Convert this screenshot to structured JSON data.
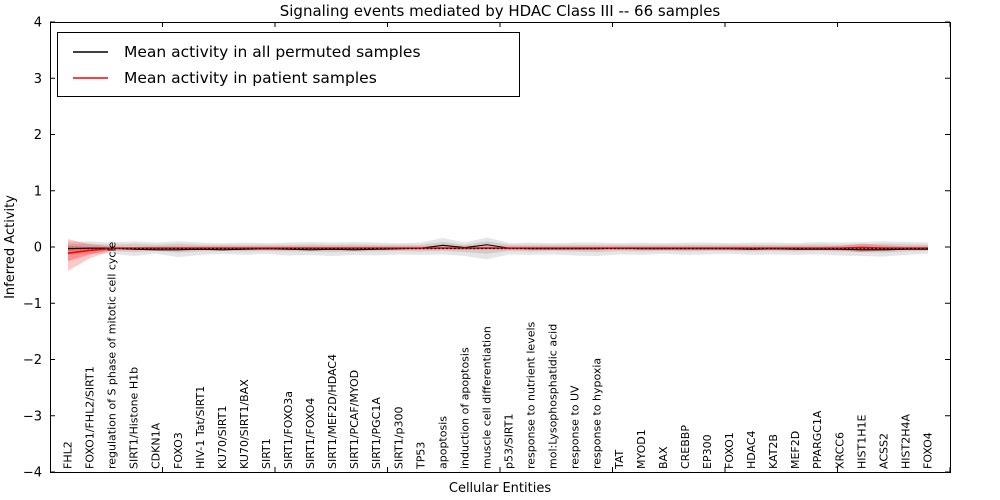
{
  "chart_data": {
    "type": "line",
    "title": "Signaling events mediated by HDAC Class III -- 66 samples",
    "xlabel": "Cellular Entities",
    "ylabel": "Inferred Activity",
    "ylim": [
      -4,
      4
    ],
    "yticks": [
      4,
      3,
      2,
      1,
      0,
      -1,
      -2,
      -3,
      -4
    ],
    "grid": false,
    "legend_position": "upper left",
    "background_color": "#ffffff",
    "axis_color": "#000000",
    "categories": [
      "FHL2",
      "FOXO1/FHL2/SIRT1",
      "regulation of S phase of mitotic cell cycle",
      "SIRT1/Histone H1b",
      "CDKN1A",
      "FOXO3",
      "HIV-1 Tat/SIRT1",
      "KU70/SIRT1",
      "KU70/SIRT1/BAX",
      "SIRT1",
      "SIRT1/FOXO3a",
      "SIRT1/FOXO4",
      "SIRT1/MEF2D/HDAC4",
      "SIRT1/PCAF/MYOD",
      "SIRT1/PGC1A",
      "SIRT1/p300",
      "TP53",
      "apoptosis",
      "induction of apoptosis",
      "muscle cell differentiation",
      "p53/SIRT1",
      "response to nutrient levels",
      "mol:Lysophosphatidic acid",
      "response to UV",
      "response to hypoxia",
      "TAT",
      "MYOD1",
      "BAX",
      "CREBBP",
      "EP300",
      "FOXO1",
      "HDAC4",
      "KAT2B",
      "MEF2D",
      "PPARGC1A",
      "XRCC6",
      "HIST1H1E",
      "ACSS2",
      "HIST2H4A",
      "FOXO4"
    ],
    "series": [
      {
        "name": "Mean activity in all permuted samples",
        "color": "#000000",
        "values": [
          -0.03,
          -0.02,
          -0.02,
          -0.04,
          -0.05,
          -0.05,
          -0.04,
          -0.05,
          -0.04,
          -0.03,
          -0.04,
          -0.05,
          -0.04,
          -0.05,
          -0.04,
          -0.03,
          -0.02,
          0.03,
          -0.01,
          0.04,
          -0.02,
          -0.03,
          -0.03,
          -0.03,
          -0.03,
          -0.02,
          -0.03,
          -0.03,
          -0.03,
          -0.03,
          -0.03,
          -0.04,
          -0.03,
          -0.04,
          -0.04,
          -0.04,
          -0.05,
          -0.05,
          -0.04,
          -0.04
        ]
      },
      {
        "name": "Mean activity in patient samples",
        "color": "#ff0000",
        "values": [
          -0.11,
          -0.06,
          -0.02,
          -0.02,
          -0.02,
          -0.02,
          -0.02,
          -0.02,
          -0.02,
          -0.02,
          -0.02,
          -0.02,
          -0.02,
          -0.02,
          -0.02,
          -0.02,
          -0.02,
          -0.02,
          -0.02,
          -0.02,
          -0.02,
          -0.02,
          -0.02,
          -0.02,
          -0.02,
          -0.02,
          -0.02,
          -0.02,
          -0.02,
          -0.02,
          -0.02,
          -0.02,
          -0.02,
          -0.02,
          -0.02,
          -0.02,
          -0.01,
          -0.02,
          -0.02,
          -0.02
        ]
      }
    ],
    "bands": {
      "permuted_outer": {
        "color": "#000000",
        "alpha": 0.1,
        "upper": [
          0.09,
          0.1,
          0.08,
          0.1,
          0.08,
          0.1,
          0.08,
          0.07,
          0.08,
          0.07,
          0.08,
          0.09,
          0.08,
          0.09,
          0.08,
          0.07,
          0.08,
          0.16,
          0.08,
          0.17,
          0.07,
          0.08,
          0.07,
          0.08,
          0.08,
          0.07,
          0.08,
          0.07,
          0.08,
          0.08,
          0.07,
          0.08,
          0.08,
          0.07,
          0.09,
          0.08,
          0.09,
          0.1,
          0.09,
          0.08
        ],
        "lower": [
          -0.13,
          -0.12,
          -0.12,
          -0.16,
          -0.12,
          -0.18,
          -0.14,
          -0.12,
          -0.14,
          -0.12,
          -0.15,
          -0.14,
          -0.16,
          -0.14,
          -0.15,
          -0.13,
          -0.14,
          -0.13,
          -0.16,
          -0.22,
          -0.13,
          -0.14,
          -0.13,
          -0.15,
          -0.16,
          -0.13,
          -0.14,
          -0.12,
          -0.14,
          -0.13,
          -0.12,
          -0.14,
          -0.13,
          -0.14,
          -0.13,
          -0.15,
          -0.16,
          -0.17,
          -0.14,
          -0.12
        ]
      },
      "permuted_inner": {
        "color": "#000000",
        "alpha": 0.1,
        "upper": [
          0.05,
          0.06,
          0.04,
          0.06,
          0.04,
          0.06,
          0.04,
          0.04,
          0.04,
          0.04,
          0.04,
          0.05,
          0.04,
          0.05,
          0.04,
          0.04,
          0.04,
          0.09,
          0.04,
          0.1,
          0.04,
          0.04,
          0.04,
          0.04,
          0.04,
          0.04,
          0.04,
          0.04,
          0.04,
          0.04,
          0.04,
          0.04,
          0.04,
          0.04,
          0.05,
          0.04,
          0.05,
          0.06,
          0.05,
          0.04
        ],
        "lower": [
          -0.07,
          -0.07,
          -0.07,
          -0.09,
          -0.07,
          -0.1,
          -0.08,
          -0.07,
          -0.08,
          -0.07,
          -0.08,
          -0.08,
          -0.09,
          -0.08,
          -0.08,
          -0.07,
          -0.08,
          -0.07,
          -0.09,
          -0.12,
          -0.07,
          -0.08,
          -0.07,
          -0.08,
          -0.09,
          -0.07,
          -0.08,
          -0.07,
          -0.08,
          -0.07,
          -0.07,
          -0.08,
          -0.07,
          -0.08,
          -0.07,
          -0.08,
          -0.09,
          -0.1,
          -0.08,
          -0.07
        ]
      },
      "patient_outer": {
        "color": "#ff0000",
        "alpha": 0.22,
        "upper": [
          0.14,
          0.05,
          0.01,
          0.0,
          0.01,
          0.01,
          0.01,
          0.01,
          0.01,
          0.01,
          0.01,
          0.01,
          0.01,
          0.01,
          0.01,
          0.01,
          0.01,
          0.01,
          0.01,
          0.01,
          0.01,
          0.01,
          0.01,
          0.01,
          0.01,
          0.01,
          0.01,
          0.01,
          0.01,
          0.01,
          0.01,
          0.01,
          0.01,
          0.01,
          0.01,
          0.02,
          0.06,
          0.03,
          0.01,
          0.01
        ],
        "lower": [
          -0.42,
          -0.2,
          -0.06,
          -0.05,
          -0.05,
          -0.05,
          -0.05,
          -0.05,
          -0.05,
          -0.05,
          -0.05,
          -0.05,
          -0.05,
          -0.05,
          -0.05,
          -0.05,
          -0.05,
          -0.04,
          -0.05,
          -0.04,
          -0.05,
          -0.05,
          -0.05,
          -0.05,
          -0.05,
          -0.05,
          -0.05,
          -0.05,
          -0.05,
          -0.05,
          -0.05,
          -0.05,
          -0.05,
          -0.05,
          -0.05,
          -0.06,
          -0.09,
          -0.06,
          -0.05,
          -0.05
        ]
      },
      "patient_inner": {
        "color": "#ff0000",
        "alpha": 0.28,
        "upper": [
          0.02,
          0.0,
          -0.01,
          -0.01,
          -0.01,
          -0.01,
          -0.01,
          -0.01,
          -0.01,
          -0.01,
          -0.01,
          -0.01,
          -0.01,
          -0.01,
          -0.01,
          -0.01,
          -0.01,
          0.0,
          -0.01,
          0.0,
          -0.01,
          -0.01,
          -0.01,
          -0.01,
          -0.01,
          -0.01,
          -0.01,
          -0.01,
          -0.01,
          -0.01,
          -0.01,
          -0.01,
          -0.01,
          -0.01,
          -0.01,
          -0.01,
          0.01,
          0.0,
          -0.01,
          -0.01
        ],
        "lower": [
          -0.25,
          -0.13,
          -0.04,
          -0.03,
          -0.03,
          -0.03,
          -0.03,
          -0.03,
          -0.03,
          -0.03,
          -0.03,
          -0.03,
          -0.03,
          -0.03,
          -0.03,
          -0.03,
          -0.03,
          -0.03,
          -0.03,
          -0.03,
          -0.03,
          -0.03,
          -0.03,
          -0.03,
          -0.03,
          -0.03,
          -0.03,
          -0.03,
          -0.03,
          -0.03,
          -0.03,
          -0.03,
          -0.03,
          -0.03,
          -0.03,
          -0.04,
          -0.05,
          -0.04,
          -0.03,
          -0.03
        ]
      }
    },
    "zero_line": {
      "style": "dotted",
      "color": "#000000",
      "value": 0
    }
  }
}
